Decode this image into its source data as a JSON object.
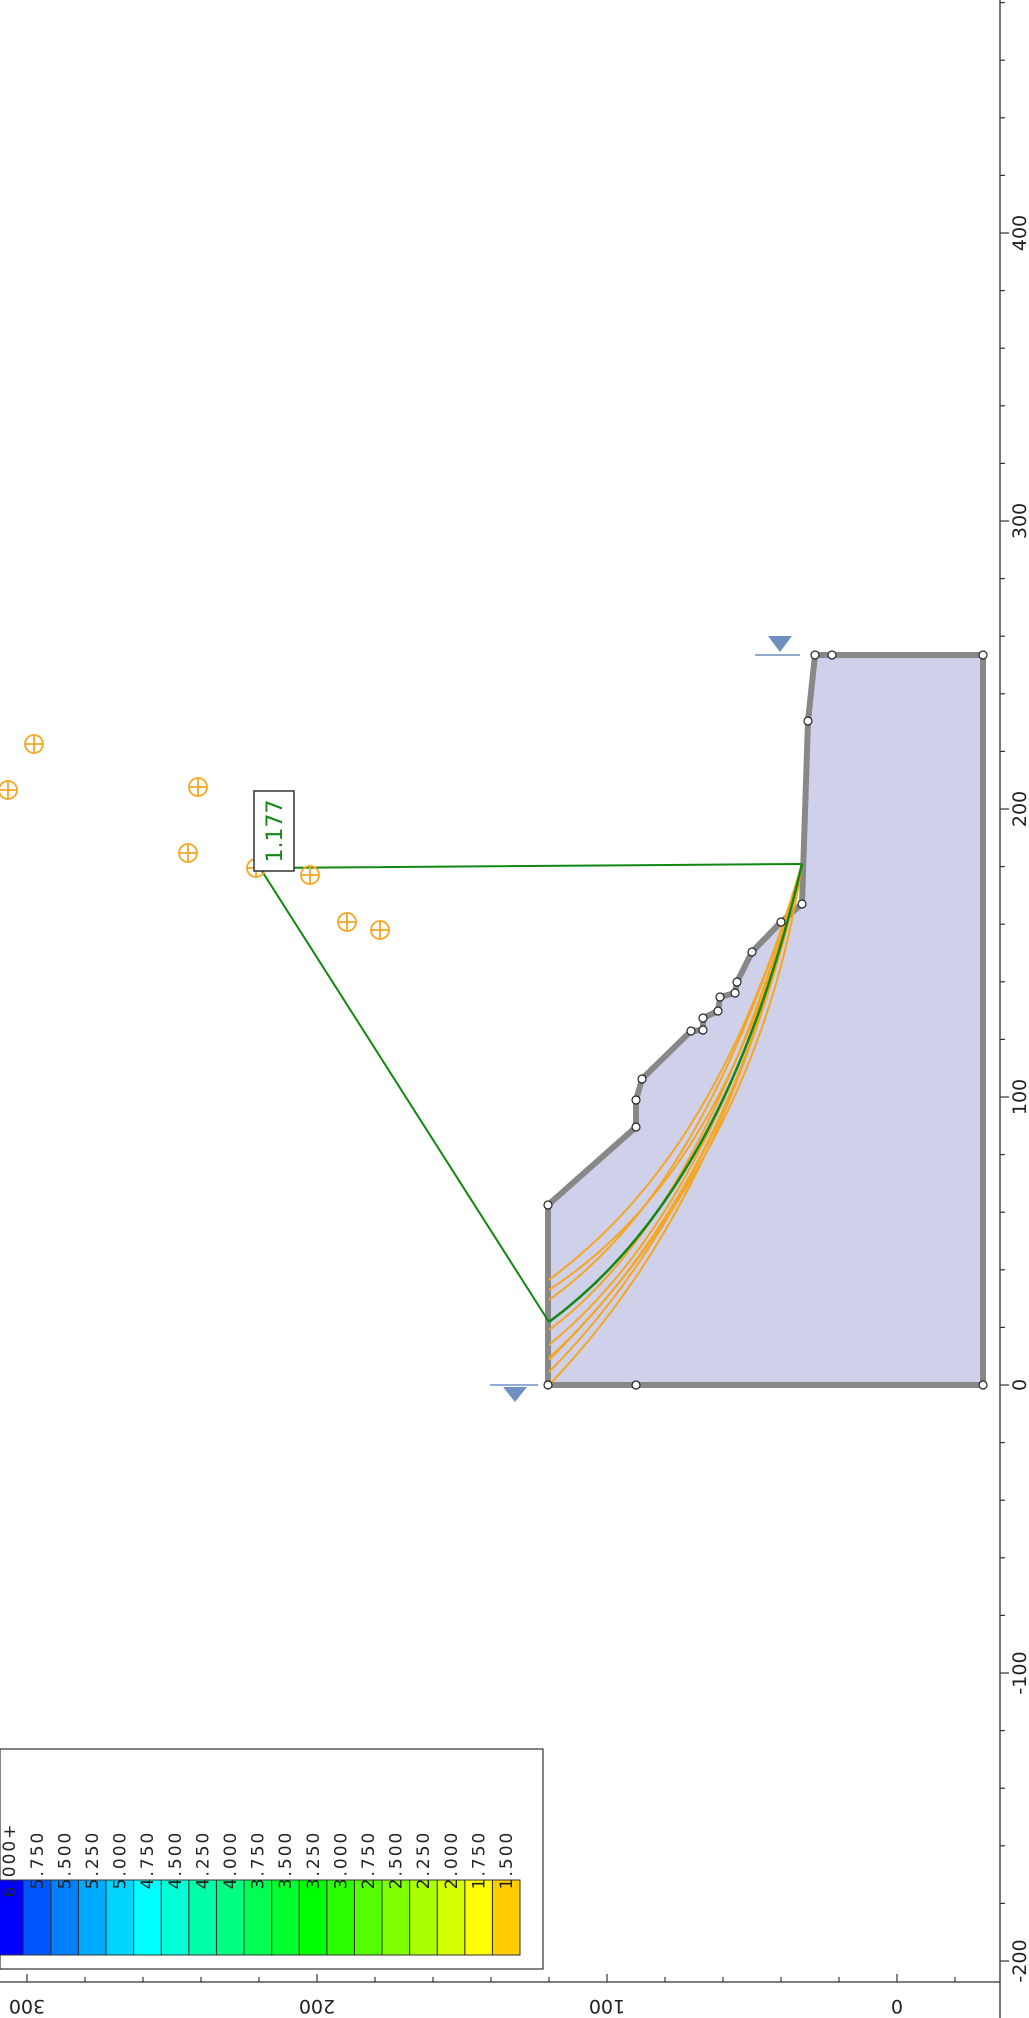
{
  "colors": {
    "material_fill": "#cfd0ea",
    "boundary": "#888888",
    "critical_surface": "#118811",
    "trial_surfaces": "#f5a623",
    "water_marker": "#6f8fc0",
    "vertex": "#ffffff"
  },
  "vertical_ruler": {
    "labels": [
      "-200",
      "-100",
      "0",
      "100",
      "200",
      "300",
      "400"
    ]
  },
  "bottom_ruler": {
    "labels": [
      "0",
      "100",
      "200",
      "300"
    ]
  },
  "critical": {
    "factor_of_safety": "1.177"
  },
  "legend": {
    "entries": [
      {
        "label": "1.500",
        "color": "#ffcc00"
      },
      {
        "label": "1.750",
        "color": "#ffff00"
      },
      {
        "label": "2.000",
        "color": "#d4ff00"
      },
      {
        "label": "2.250",
        "color": "#aaff00"
      },
      {
        "label": "2.500",
        "color": "#80ff00"
      },
      {
        "label": "2.750",
        "color": "#55ff00"
      },
      {
        "label": "3.000",
        "color": "#2bff00"
      },
      {
        "label": "3.250",
        "color": "#00ff00"
      },
      {
        "label": "3.500",
        "color": "#00ff2b"
      },
      {
        "label": "3.750",
        "color": "#00ff55"
      },
      {
        "label": "4.000",
        "color": "#00ff80"
      },
      {
        "label": "4.250",
        "color": "#00ffaa"
      },
      {
        "label": "4.500",
        "color": "#00ffd4"
      },
      {
        "label": "4.750",
        "color": "#00ffff"
      },
      {
        "label": "5.000",
        "color": "#00d4ff"
      },
      {
        "label": "5.250",
        "color": "#00aaff"
      },
      {
        "label": "5.500",
        "color": "#0080ff"
      },
      {
        "label": "5.750",
        "color": "#0055ff"
      },
      {
        "label": "6.000+",
        "color": "#0000ff"
      }
    ]
  }
}
